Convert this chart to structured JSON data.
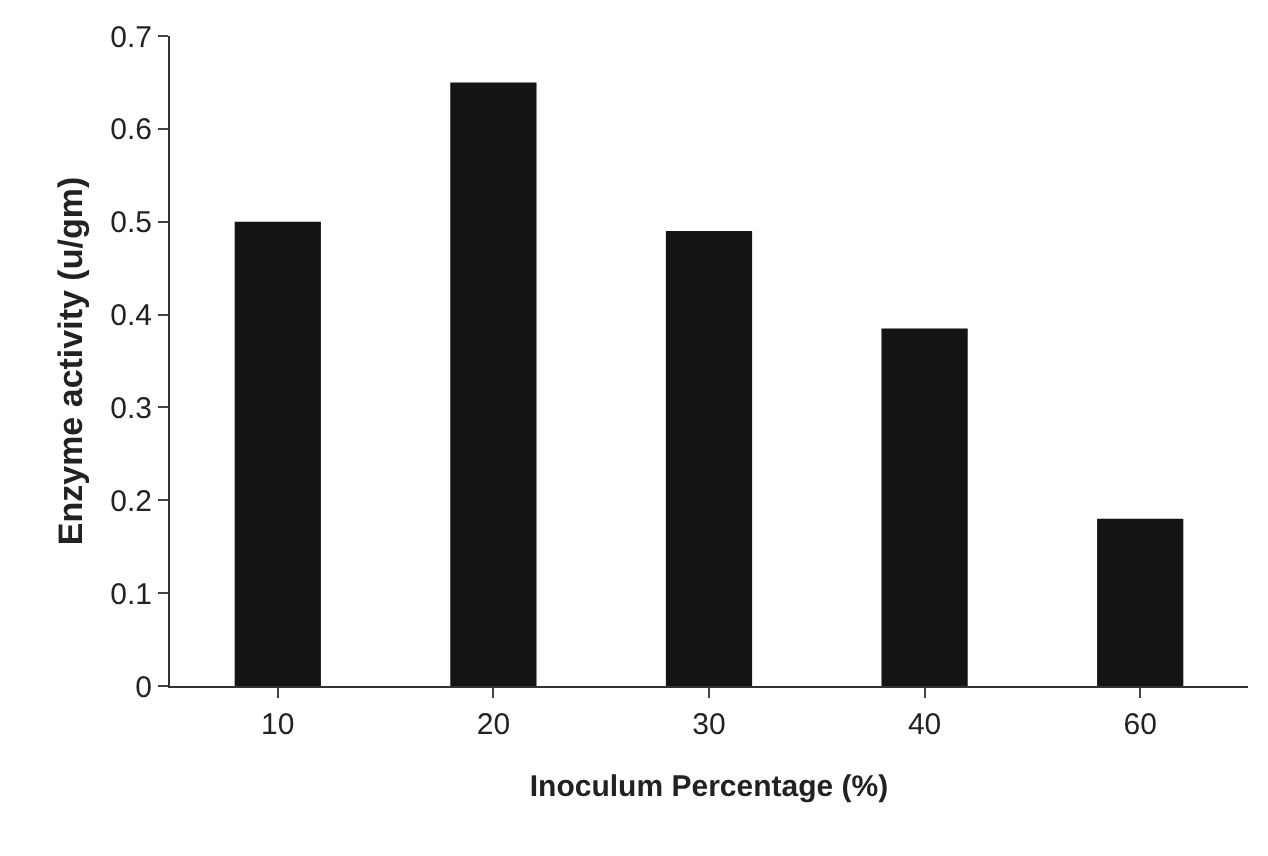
{
  "chart_data": {
    "type": "bar",
    "xlabel": "Inoculum Percentage (%)",
    "ylabel": "Enzyme activity (u/gm)",
    "categories": [
      "10",
      "20",
      "30",
      "40",
      "60"
    ],
    "values": [
      0.5,
      0.65,
      0.49,
      0.385,
      0.18
    ],
    "color": "#141414",
    "ylim": [
      0,
      0.7
    ],
    "yticks": [
      0,
      0.1,
      0.2,
      0.3,
      0.4,
      0.5,
      0.6,
      0.7
    ],
    "grid": false,
    "legend": false
  }
}
